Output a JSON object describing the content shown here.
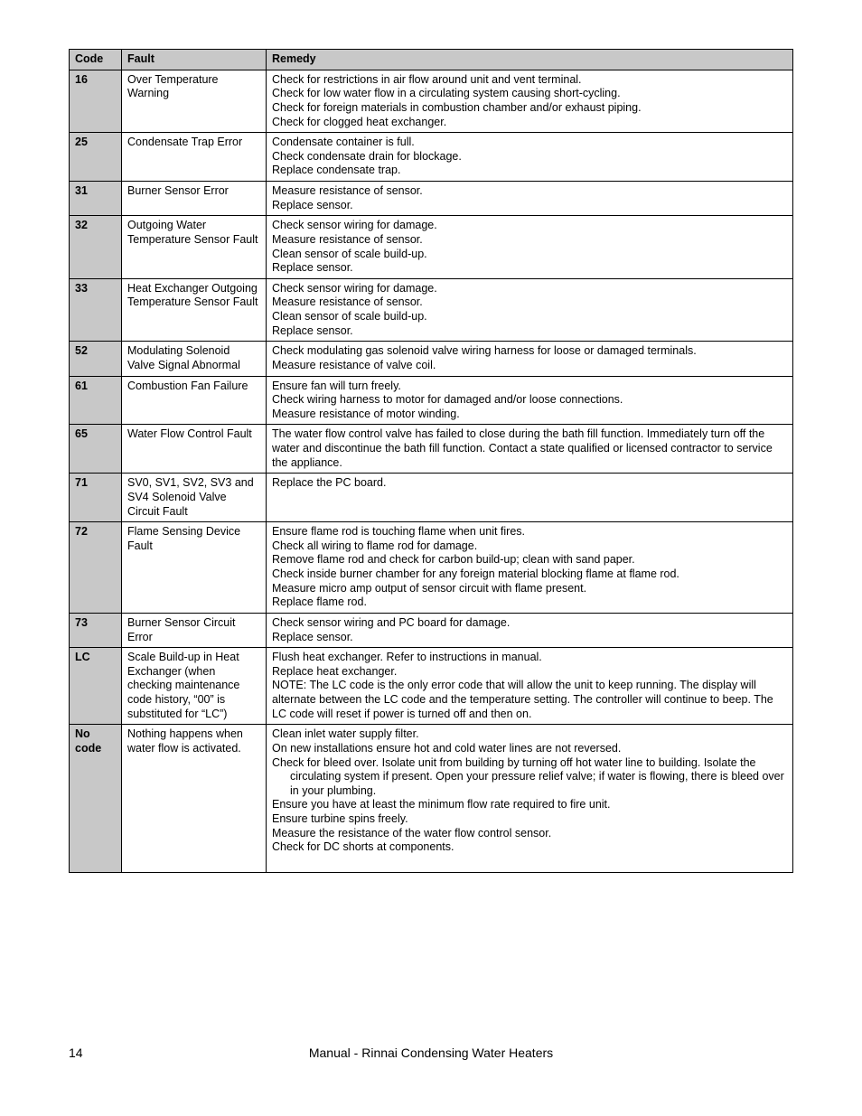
{
  "colors": {
    "header_bg": "#c8c8c8",
    "border": "#000000",
    "text": "#000000",
    "page_bg": "#ffffff"
  },
  "header": {
    "code": "Code",
    "fault": "Fault",
    "remedy": "Remedy"
  },
  "rows": [
    {
      "code": "16",
      "fault": "Over Temperature Warning",
      "remedy": [
        {
          "t": "Check for restrictions in air flow around unit and vent terminal."
        },
        {
          "t": "Check for low water flow in a circulating system causing short-cycling."
        },
        {
          "t": "Check for foreign materials in combustion chamber and/or exhaust piping."
        },
        {
          "t": "Check for clogged heat exchanger."
        }
      ]
    },
    {
      "code": "25",
      "fault": "Condensate Trap Error",
      "remedy": [
        {
          "t": "Condensate container is full."
        },
        {
          "t": "Check condensate drain for blockage."
        },
        {
          "t": "Replace condensate trap."
        }
      ]
    },
    {
      "code": "31",
      "fault": "Burner Sensor Error",
      "remedy": [
        {
          "t": "Measure resistance of sensor."
        },
        {
          "t": "Replace sensor."
        }
      ]
    },
    {
      "code": "32",
      "fault": "Outgoing Water Temperature Sensor Fault",
      "remedy": [
        {
          "t": "Check sensor wiring for damage."
        },
        {
          "t": "Measure resistance of sensor."
        },
        {
          "t": "Clean sensor of scale build-up."
        },
        {
          "t": "Replace sensor."
        }
      ]
    },
    {
      "code": "33",
      "fault": "Heat Exchanger Outgoing Temperature Sensor Fault",
      "remedy": [
        {
          "t": "Check sensor wiring for damage."
        },
        {
          "t": "Measure resistance of sensor."
        },
        {
          "t": "Clean sensor of scale build-up."
        },
        {
          "t": "Replace sensor."
        }
      ]
    },
    {
      "code": "52",
      "fault": "Modulating Solenoid Valve Signal Abnormal",
      "remedy": [
        {
          "t": "Check modulating gas solenoid valve wiring harness for loose or damaged terminals."
        },
        {
          "t": "Measure resistance of valve coil."
        }
      ]
    },
    {
      "code": "61",
      "fault": "Combustion Fan Failure",
      "remedy": [
        {
          "t": "Ensure fan will turn freely."
        },
        {
          "t": "Check wiring harness to motor for damaged and/or loose connections."
        },
        {
          "t": "Measure resistance of motor winding."
        }
      ]
    },
    {
      "code": "65",
      "fault": "Water Flow Control Fault",
      "remedy": [
        {
          "t": "The water flow control valve has failed to close during the bath fill function.  Immediately turn off the water and discontinue the bath fill function.  Contact a state qualified or licensed contractor to service the appliance."
        }
      ]
    },
    {
      "code": "71",
      "fault": "SV0, SV1, SV2, SV3 and SV4 Solenoid Valve Circuit Fault",
      "remedy": [
        {
          "t": "Replace the PC board."
        }
      ]
    },
    {
      "code": "72",
      "fault": "Flame Sensing Device Fault",
      "remedy": [
        {
          "t": "Ensure flame rod is touching flame when unit fires."
        },
        {
          "t": "Check all wiring to flame rod for damage."
        },
        {
          "t": "Remove flame rod and check for carbon build-up; clean with sand paper."
        },
        {
          "t": "Check inside burner chamber for any foreign material blocking flame at flame rod."
        },
        {
          "t": "Measure micro amp output of sensor circuit with flame present."
        },
        {
          "t": "Replace flame rod."
        }
      ]
    },
    {
      "code": "73",
      "fault": "Burner Sensor Circuit Error",
      "remedy": [
        {
          "t": "Check sensor wiring and PC board for damage."
        },
        {
          "t": "Replace sensor."
        }
      ]
    },
    {
      "code": "LC",
      "fault": "Scale Build-up in Heat Exchanger (when checking maintenance code history, “00” is substituted for “LC”)",
      "remedy": [
        {
          "t": "Flush heat exchanger.  Refer to instructions in manual."
        },
        {
          "t": "Replace heat exchanger."
        },
        {
          "t": "NOTE: The LC code is the only error code that will allow the unit to keep running.  The display will alternate between the LC code and the temperature setting.  The controller will continue to beep.  The LC code will reset if power is turned off and then on."
        }
      ]
    },
    {
      "code": "No code",
      "fault": "Nothing happens when water flow is activated.",
      "remedy": [
        {
          "t": "Clean inlet water supply filter."
        },
        {
          "t": "On new installations ensure hot and cold water lines are not reversed."
        },
        {
          "t": "Check for bleed over. Isolate unit from building by turning off hot water line to building.  Isolate the"
        },
        {
          "t": "circulating system if present.  Open your pressure relief valve; if water is flowing, there is bleed over in your plumbing.",
          "indent": true
        },
        {
          "t": "Ensure you have at least the minimum flow rate required to fire unit."
        },
        {
          "t": "Ensure turbine spins freely."
        },
        {
          "t": "Measure the resistance of the water flow control sensor."
        },
        {
          "t": "Check for DC shorts at components."
        },
        {
          "t": " "
        }
      ]
    }
  ],
  "footer": {
    "page_number": "14",
    "doc_title": "Manual - Rinnai Condensing Water Heaters"
  }
}
